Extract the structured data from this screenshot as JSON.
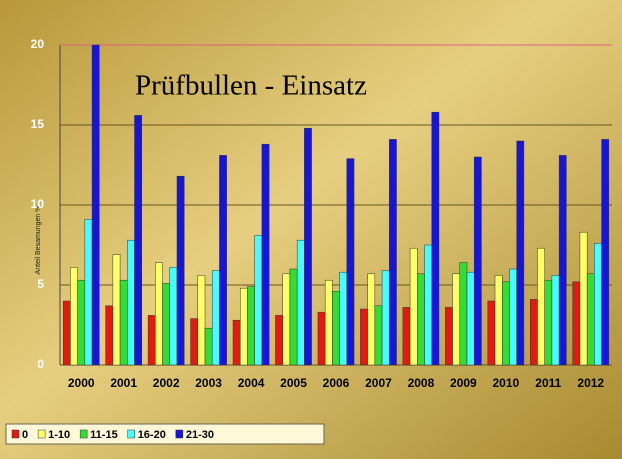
{
  "chart_data": {
    "type": "bar",
    "title": "Prüfbullen - Einsatz",
    "y_label": "Anteil Besamungen %",
    "categories": [
      "2000",
      "2001",
      "2002",
      "2003",
      "2004",
      "2005",
      "2006",
      "2007",
      "2008",
      "2009",
      "2010",
      "2011",
      "2012"
    ],
    "series": [
      {
        "name": "0",
        "color": "#e41a12",
        "values": [
          4.0,
          3.7,
          3.1,
          2.9,
          2.8,
          3.1,
          3.3,
          3.5,
          3.6,
          3.6,
          4.0,
          4.1,
          5.2
        ]
      },
      {
        "name": "1-10",
        "color": "#ffff66",
        "values": [
          6.1,
          6.9,
          6.4,
          5.6,
          4.8,
          5.7,
          5.3,
          5.7,
          7.3,
          5.7,
          5.6,
          7.3,
          8.3
        ]
      },
      {
        "name": "11-15",
        "color": "#33dd33",
        "values": [
          5.3,
          5.3,
          5.1,
          2.3,
          4.9,
          6.0,
          4.6,
          3.7,
          5.7,
          6.4,
          5.2,
          5.3,
          5.7
        ]
      },
      {
        "name": "16-20",
        "color": "#44ffff",
        "values": [
          9.1,
          7.8,
          6.1,
          5.9,
          8.1,
          7.8,
          5.8,
          5.9,
          7.5,
          5.8,
          6.0,
          5.6,
          7.6
        ]
      },
      {
        "name": "21-30",
        "color": "#1515dd",
        "values": [
          20.0,
          15.6,
          11.8,
          13.1,
          13.8,
          14.8,
          12.9,
          14.1,
          15.8,
          13.0,
          14.0,
          13.1,
          14.1
        ]
      }
    ],
    "ylim": [
      0,
      20
    ],
    "yticks": [
      0,
      5,
      10,
      15,
      20
    ],
    "grid": true
  }
}
